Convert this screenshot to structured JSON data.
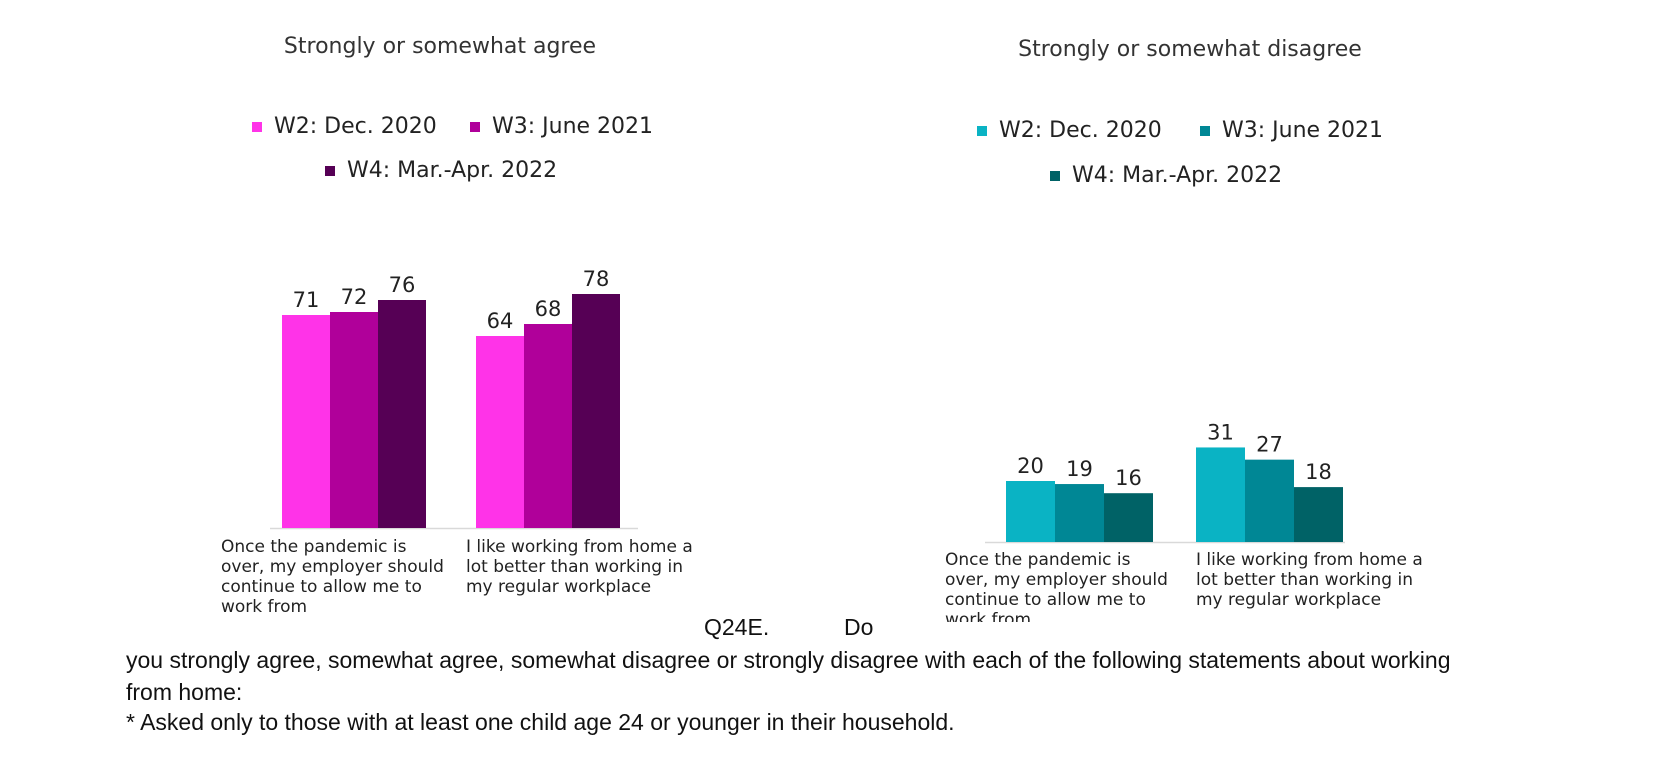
{
  "chart_data": [
    {
      "type": "bar",
      "title": "Strongly or somewhat agree",
      "categories": [
        "Once the pandemic is over, my employer should continue to allow me to work from",
        "I like working from home a lot better than working in my regular workplace"
      ],
      "series": [
        {
          "name": "W2: Dec. 2020",
          "color": "#ff33e8",
          "values": [
            71,
            64
          ]
        },
        {
          "name": "W3: June 2021",
          "color": "#b0009a",
          "values": [
            72,
            68
          ]
        },
        {
          "name": "W4: Mar.-Apr. 2022",
          "color": "#560055",
          "values": [
            76,
            78
          ]
        }
      ],
      "ylim": [
        0,
        100
      ],
      "xlabel": "",
      "ylabel": "",
      "legend": "top"
    },
    {
      "type": "bar",
      "title": "Strongly or somewhat disagree",
      "categories": [
        "Once the pandemic is over, my employer should continue to allow me to work from",
        "I like working from home a lot better than working in my regular workplace"
      ],
      "series": [
        {
          "name": "W2: Dec. 2020",
          "color": "#0ab3c4",
          "values": [
            20,
            31
          ]
        },
        {
          "name": "W3: June 2021",
          "color": "#008795",
          "values": [
            19,
            27
          ]
        },
        {
          "name": "W4: Mar.-Apr. 2022",
          "color": "#006266",
          "values": [
            16,
            18
          ]
        }
      ],
      "ylim": [
        0,
        100
      ],
      "xlabel": "",
      "ylabel": "",
      "legend": "top"
    }
  ],
  "footer": {
    "q_code": "Q24E.",
    "q_do": "Do",
    "question": "you strongly agree, somewhat agree, somewhat disagree or strongly disagree with each of the following statements about working from home:",
    "note": "* Asked only to those with at least one child age 24 or younger in their household."
  }
}
